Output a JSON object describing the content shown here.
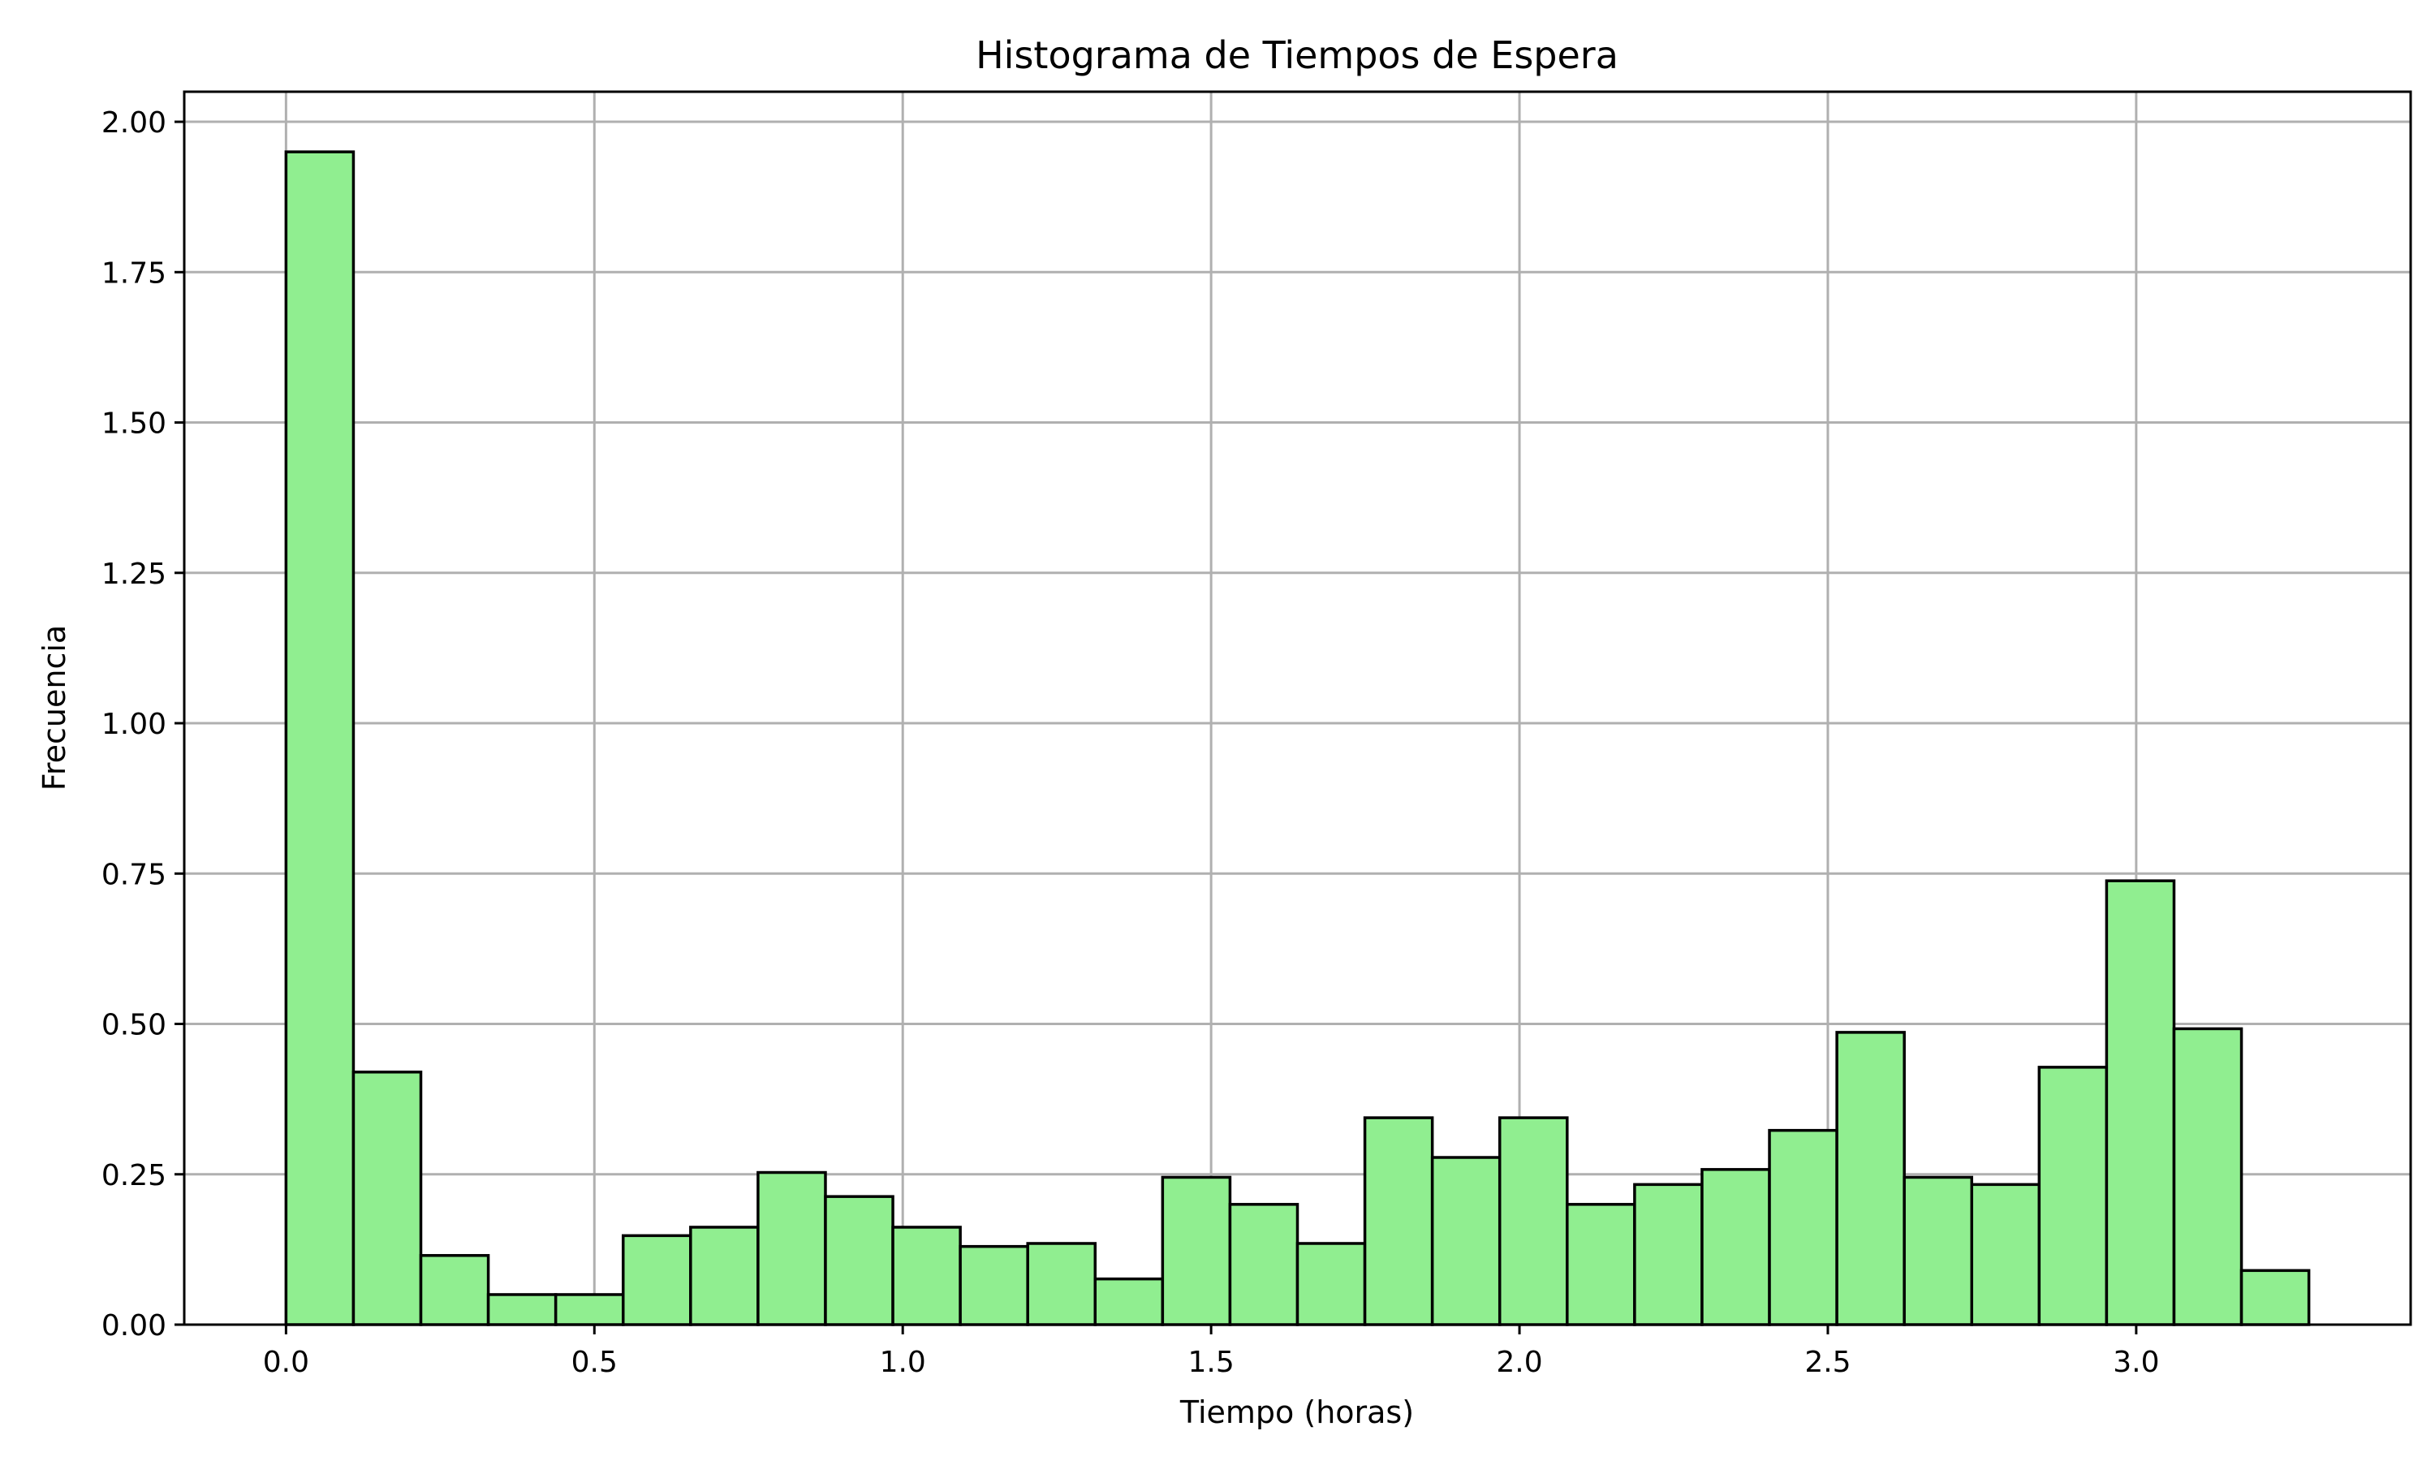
{
  "chart_data": {
    "type": "bar",
    "title": "Histograma de Tiempos de Espera",
    "xlabel": "Tiempo (horas)",
    "ylabel": "Frecuencia",
    "xlim": [
      -0.165,
      3.445
    ],
    "ylim": [
      0,
      2.05
    ],
    "xticks": [
      0.0,
      0.5,
      1.0,
      1.5,
      2.0,
      2.5,
      3.0
    ],
    "xtick_labels": [
      "0.0",
      "0.5",
      "1.0",
      "1.5",
      "2.0",
      "2.5",
      "3.0"
    ],
    "yticks": [
      0.0,
      0.25,
      0.5,
      0.75,
      1.0,
      1.25,
      1.5,
      1.75,
      2.0
    ],
    "ytick_labels": [
      "0.00",
      "0.25",
      "0.50",
      "0.75",
      "1.00",
      "1.25",
      "1.50",
      "1.75",
      "2.00"
    ],
    "grid": true,
    "bar_color": "#90ee90",
    "edge_color": "#000000",
    "bin_start": 0.0,
    "bin_end": 3.28,
    "values": [
      1.95,
      0.42,
      0.115,
      0.05,
      0.05,
      0.148,
      0.162,
      0.253,
      0.213,
      0.162,
      0.13,
      0.135,
      0.076,
      0.245,
      0.2,
      0.135,
      0.344,
      0.278,
      0.344,
      0.2,
      0.233,
      0.258,
      0.323,
      0.486,
      0.245,
      0.233,
      0.428,
      0.738,
      0.492,
      0.09
    ]
  }
}
